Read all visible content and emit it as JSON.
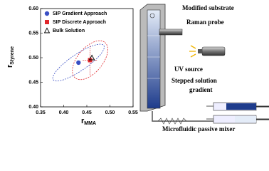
{
  "chart_data": {
    "type": "scatter",
    "xlabel": "r",
    "xlabel_sub": "MMA",
    "ylabel": "r",
    "ylabel_sub": "Styrene",
    "xlim": [
      0.35,
      0.55
    ],
    "xticks": [
      0.35,
      {
        "value": 0.4,
        "label": "0.40"
      },
      0.45,
      {
        "value": 0.5,
        "label": "0.50"
      },
      0.55
    ],
    "ylim": [
      0.4,
      0.6
    ],
    "yticks": [
      {
        "value": 0.4,
        "label": "0.40"
      },
      0.45,
      {
        "value": 0.5,
        "label": "0.50"
      },
      0.55,
      {
        "value": 0.6,
        "label": "0.60"
      }
    ],
    "legend": "upper left",
    "series": [
      {
        "name": "SIP Gradient Approach",
        "color": "#3a4fc4",
        "marker": "circle",
        "x": [
          0.432
        ],
        "values": [
          0.49
        ],
        "ellipse": {
          "rx": 0.066,
          "ry": 0.018,
          "angle": 34
        }
      },
      {
        "name": "SIP Discrete Approach",
        "color": "#e0262b",
        "marker": "square",
        "x": [
          0.457
        ],
        "values": [
          0.495
        ],
        "xerr": [
          0.016
        ],
        "yerr": [
          0.03
        ],
        "ellipse": {
          "rx": 0.05,
          "ry": 0.027,
          "angle": 50
        }
      },
      {
        "name": "Bulk Solution",
        "color": "#000000",
        "marker": "triangle",
        "x": [
          0.461
        ],
        "values": [
          0.5
        ]
      }
    ]
  },
  "diagram": {
    "labels": [
      "Modified substrate",
      "Raman probe",
      "UV source",
      "Stepped solution",
      "gradient",
      "Microfluidic passive mixer"
    ]
  }
}
